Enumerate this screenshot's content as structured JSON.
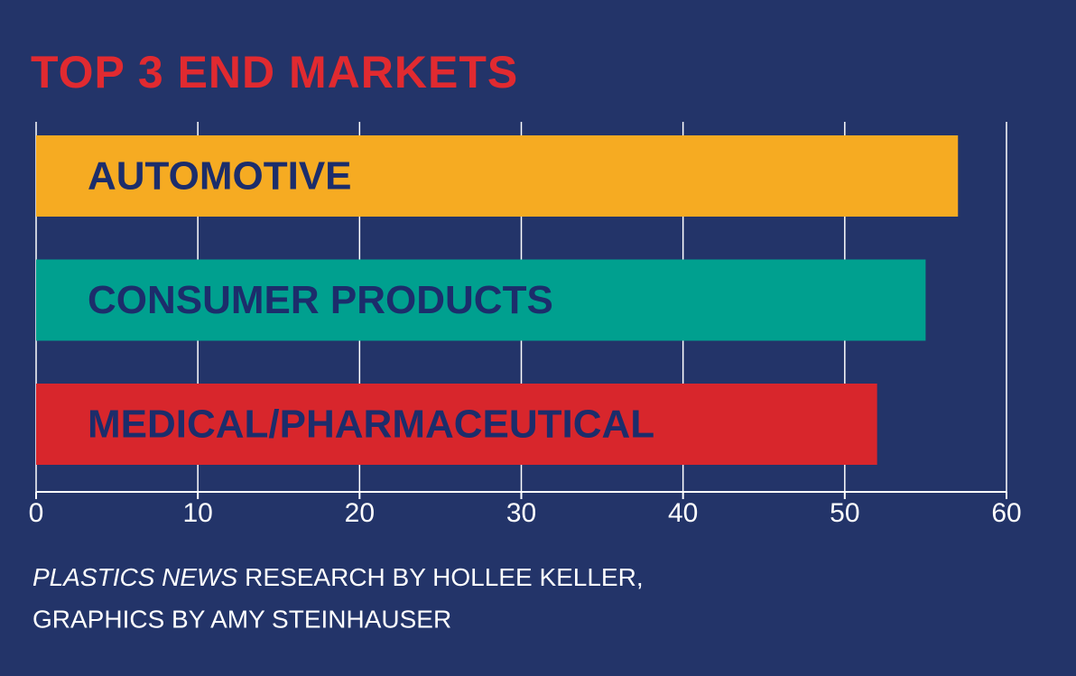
{
  "chart_data": {
    "type": "barh",
    "title": "TOP 3 END MARKETS",
    "categories": [
      "AUTOMOTIVE",
      "CONSUMER PRODUCTS",
      "MEDICAL/PHARMACEUTICAL"
    ],
    "values": [
      57,
      55,
      52
    ],
    "colors": [
      "#f6ab22",
      "#00a08f",
      "#d8262c"
    ],
    "xlim": [
      0,
      60
    ],
    "xticks": [
      0,
      10,
      20,
      30,
      40,
      50,
      60
    ],
    "grid": true,
    "source_publication": "PLASTICS NEWS",
    "source_line1": "RESEARCH BY HOLLEE KELLER,",
    "source_line2": "GRAPHICS BY AMY STEINHAUSER"
  }
}
